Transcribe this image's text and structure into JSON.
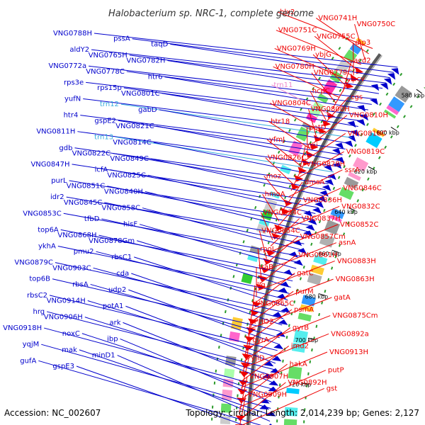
{
  "title": "Halobacterium sp. NRC-1, complete genome",
  "footer": {
    "accession": "Accession: NC_002607",
    "topology": "Topology: circular; Length: 2,014,239 bp; Genes: 2,127"
  },
  "scale_labels": [
    "580 kbp",
    "600 kbp",
    "620 kbp",
    "640 kbp",
    "660 kbp",
    "680 kbp",
    "700 kbp",
    "720 kbp",
    "740 kbp"
  ],
  "colors": {
    "forward": "#0000cc",
    "reverse": "#ee0000",
    "rna_forward": "#33aadd",
    "rna_reverse": "#ee88cc",
    "backbone": "#808080"
  },
  "forward_genes": [
    {
      "label": "VNG0788H",
      "rna": false
    },
    {
      "label": "pssA",
      "rna": false
    },
    {
      "label": "taqD",
      "rna": false
    },
    {
      "label": "aldY2",
      "rna": false
    },
    {
      "label": "VNG0765H",
      "rna": false
    },
    {
      "label": "VNG0782H",
      "rna": false
    },
    {
      "label": "VNG0772a",
      "rna": false
    },
    {
      "label": "VNG0778C",
      "rna": false
    },
    {
      "label": "htr6",
      "rna": false
    },
    {
      "label": "rps3e",
      "rna": false
    },
    {
      "label": "rps15p",
      "rna": false
    },
    {
      "label": "VNG0801C",
      "rna": false
    },
    {
      "label": "yufN",
      "rna": false
    },
    {
      "label": "trn12",
      "rna": true
    },
    {
      "label": "gabD",
      "rna": false
    },
    {
      "label": "htr4",
      "rna": false
    },
    {
      "label": "gspE2",
      "rna": false
    },
    {
      "label": "VNG0821C",
      "rna": false
    },
    {
      "label": "VNG0811H",
      "rna": false
    },
    {
      "label": "trn13",
      "rna": true
    },
    {
      "label": "VNG0814C",
      "rna": false
    },
    {
      "label": "gdb",
      "rna": false
    },
    {
      "label": "VNG0822C",
      "rna": false
    },
    {
      "label": "VNG0849C",
      "rna": false
    },
    {
      "label": "VNG0847H",
      "rna": false
    },
    {
      "label": "icfA",
      "rna": false
    },
    {
      "label": "VNG0825C",
      "rna": false
    },
    {
      "label": "purL",
      "rna": false
    },
    {
      "label": "VNG0851C",
      "rna": false
    },
    {
      "label": "VNG0840H",
      "rna": false
    },
    {
      "label": "idr2",
      "rna": false
    },
    {
      "label": "VNG0845C",
      "rna": false
    },
    {
      "label": "VNG0858C",
      "rna": false
    },
    {
      "label": "VNG0853C",
      "rna": false
    },
    {
      "label": "tfbD",
      "rna": false
    },
    {
      "label": "hisF",
      "rna": false
    },
    {
      "label": "top6A",
      "rna": false
    },
    {
      "label": "VNG0868H",
      "rna": false
    },
    {
      "label": "VNG0878Gm",
      "rna": false
    },
    {
      "label": "ykhA",
      "rna": false
    },
    {
      "label": "pmu2",
      "rna": false
    },
    {
      "label": "rbsC1",
      "rna": false
    },
    {
      "label": "VNG0879C",
      "rna": false
    },
    {
      "label": "VNG0903C",
      "rna": false
    },
    {
      "label": "cda",
      "rna": false
    },
    {
      "label": "top6B",
      "rna": false
    },
    {
      "label": "rbsA",
      "rna": false
    },
    {
      "label": "udp2",
      "rna": false
    },
    {
      "label": "rbsC2",
      "rna": false
    },
    {
      "label": "VNG0914H",
      "rna": false
    },
    {
      "label": "potA1",
      "rna": false
    },
    {
      "label": "hrg",
      "rna": false
    },
    {
      "label": "VNG0906H",
      "rna": false
    },
    {
      "label": "ark",
      "rna": false
    },
    {
      "label": "VNG0918H",
      "rna": false
    },
    {
      "label": "noxC",
      "rna": false
    },
    {
      "label": "ibp",
      "rna": false
    },
    {
      "label": "yqjM",
      "rna": false
    },
    {
      "label": "mak",
      "rna": false
    },
    {
      "label": "minD1",
      "rna": false
    },
    {
      "label": "gufA",
      "rna": false
    },
    {
      "label": "gspE3",
      "rna": false
    }
  ],
  "reverse_genes": [
    {
      "label": "hlx2",
      "rna": false
    },
    {
      "label": "VNG0741H",
      "rna": false
    },
    {
      "label": "VNG0750C",
      "rna": false
    },
    {
      "label": "VNG0751C",
      "rna": false
    },
    {
      "label": "VNG0755C",
      "rna": false
    },
    {
      "label": "dip3",
      "rna": false
    },
    {
      "label": "VNG0769H",
      "rna": false
    },
    {
      "label": "ybjG",
      "rna": false
    },
    {
      "label": "acd2",
      "rna": false
    },
    {
      "label": "VNG0780H",
      "rna": false
    },
    {
      "label": "VNG0779C",
      "rna": false
    },
    {
      "label": "pcv",
      "rna": false
    },
    {
      "label": "trn11",
      "rna": true
    },
    {
      "label": "hcpC",
      "rna": false
    },
    {
      "label": "cgs",
      "rna": false
    },
    {
      "label": "VNG0804C",
      "rna": false
    },
    {
      "label": "VNG0800H",
      "rna": false
    },
    {
      "label": "VNG0810H",
      "rna": false
    },
    {
      "label": "htr18",
      "rna": false
    },
    {
      "label": "potD",
      "rna": false
    },
    {
      "label": "VNG0818C",
      "rna": false
    },
    {
      "label": "yfmJ",
      "rna": false
    },
    {
      "label": "chi",
      "rna": false
    },
    {
      "label": "VNG0819C",
      "rna": false
    },
    {
      "label": "VNG0826C",
      "rna": false
    },
    {
      "label": "VNG0828H",
      "rna": false
    },
    {
      "label": "ssrA",
      "rna": false
    },
    {
      "label": "moz",
      "rna": false
    },
    {
      "label": "dmsA",
      "rna": false
    },
    {
      "label": "VNG0846C",
      "rna": false
    },
    {
      "label": "hmoA",
      "rna": false
    },
    {
      "label": "VNG0836H",
      "rna": false
    },
    {
      "label": "VNG0832C",
      "rna": false
    },
    {
      "label": "VNG0834C",
      "rna": false
    },
    {
      "label": "VNG0837H",
      "rna": false
    },
    {
      "label": "VNG0852C",
      "rna": false
    },
    {
      "label": "VNG0854C",
      "rna": false
    },
    {
      "label": "VNG0857Cm",
      "rna": false
    },
    {
      "label": "asnA",
      "rna": false
    },
    {
      "label": "rpoL",
      "rna": false
    },
    {
      "label": "VNG0861H",
      "rna": false
    },
    {
      "label": "VNG0883H",
      "rna": false
    },
    {
      "label": "traB",
      "rna": false
    },
    {
      "label": "gatC",
      "rna": false
    },
    {
      "label": "VNG0863H",
      "rna": false
    },
    {
      "label": "lig",
      "rna": false
    },
    {
      "label": "purM",
      "rna": false
    },
    {
      "label": "gatA",
      "rna": false
    },
    {
      "label": "VNG0865C",
      "rna": false
    },
    {
      "label": "psmA",
      "rna": false
    },
    {
      "label": "VNG0875Cm",
      "rna": false
    },
    {
      "label": "PHO2",
      "rna": false
    },
    {
      "label": "gyrB",
      "rna": false
    },
    {
      "label": "VNG0892a",
      "rna": false
    },
    {
      "label": "gyrA",
      "rna": false
    },
    {
      "label": "imd2",
      "rna": false
    },
    {
      "label": "VNG0913H",
      "rna": false
    },
    {
      "label": "yjlD",
      "rna": false
    },
    {
      "label": "hakA",
      "rna": false
    },
    {
      "label": "putP",
      "rna": false
    },
    {
      "label": "VNG0907H",
      "rna": false
    },
    {
      "label": "VNG0892H",
      "rna": false
    },
    {
      "label": "gst",
      "rna": false
    },
    {
      "label": "VNG0909H",
      "rna": false
    }
  ]
}
